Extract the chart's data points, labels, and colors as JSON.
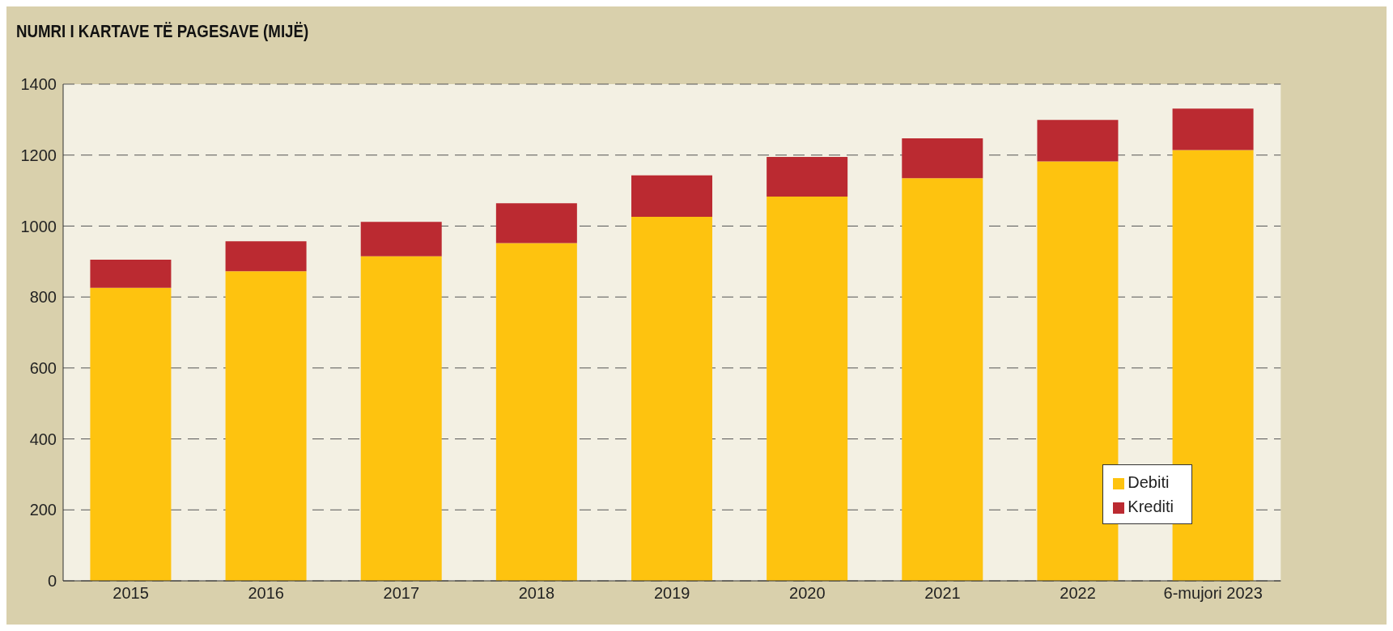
{
  "chart_data": {
    "type": "bar",
    "title": "NUMRI I KARTAVE TË PAGESAVE (MIJË)",
    "categories": [
      "2015",
      "2016",
      "2017",
      "2018",
      "2019",
      "2020",
      "2021",
      "2022",
      "6-mujori 2023"
    ],
    "stacked": true,
    "series": [
      {
        "name": "Debiti",
        "color": "#fec30f",
        "values": [
          826,
          873,
          915,
          952,
          1026,
          1083,
          1135,
          1182,
          1214
        ]
      },
      {
        "name": "Krediti",
        "color": "#bb2a31",
        "values": [
          79,
          84,
          97,
          112,
          117,
          112,
          112,
          117,
          117
        ]
      }
    ],
    "ylim": [
      0,
      1400
    ],
    "yticks": [
      0,
      200,
      400,
      600,
      800,
      1000,
      1200,
      1400
    ],
    "grid": "y",
    "legend": "bottom right"
  }
}
